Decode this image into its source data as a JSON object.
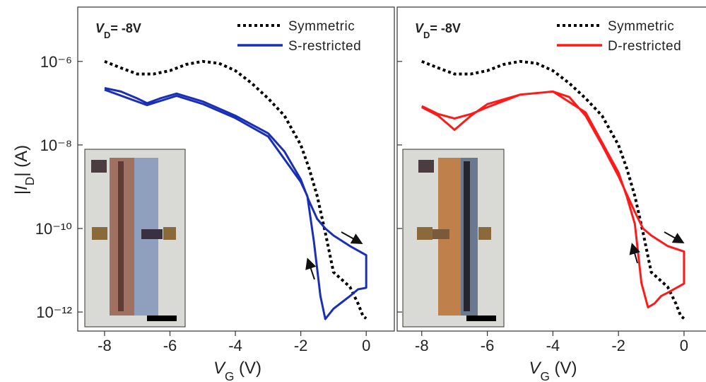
{
  "chart_data": [
    {
      "type": "line",
      "log_y": true,
      "legend": "upper right",
      "annotation": {
        "text": "V",
        "sub": "D",
        "rest": "= -8V"
      },
      "xlabel": {
        "text": "V",
        "sub": "G",
        "rest": " (V)"
      },
      "ylabel": {
        "pre": "|",
        "text": "I",
        "sub": "D",
        "rest": "| (A)"
      },
      "xlim": [
        -8.82,
        0.86
      ],
      "xticks": [
        -8,
        -6,
        -4,
        -2,
        0
      ],
      "ylim": [
        3.5e-13,
        2e-05
      ],
      "yticks": [
        {
          "value": 1e-06,
          "label": "10⁻⁶"
        },
        {
          "value": 1e-08,
          "label": "10⁻⁸"
        },
        {
          "value": 1e-10,
          "label": "10⁻¹⁰"
        },
        {
          "value": 1e-12,
          "label": "10⁻¹²"
        }
      ],
      "series": [
        {
          "name": "Symmetric",
          "color": "#000000",
          "style": "dotted",
          "x": [
            -8,
            -7.5,
            -7,
            -6.5,
            -6,
            -5.5,
            -5,
            -4.5,
            -4,
            -3.5,
            -3,
            -2.5,
            -2,
            -1.75,
            -1.5,
            -1.25,
            -1,
            -0.75,
            -0.5,
            -0.25,
            -0.1,
            0
          ],
          "values": [
            1e-06,
            7e-07,
            5e-07,
            5e-07,
            6e-07,
            8.5e-07,
            1e-06,
            9e-07,
            6e-07,
            3e-07,
            1.3e-07,
            5e-08,
            1e-08,
            2.8e-09,
            6e-10,
            8e-11,
            9e-12,
            6e-12,
            4e-12,
            1.6e-12,
            8e-13,
            7e-13
          ]
        },
        {
          "name": "S-restricted",
          "color": "#1a2fb8",
          "style": "solid",
          "x": [
            -8,
            -7.5,
            -7,
            -6.7,
            -6.3,
            -5.8,
            -5,
            -4,
            -3,
            -2.5,
            -2,
            -1.75,
            -1.5,
            -1.25,
            -1,
            -0.5,
            0,
            0,
            -0.25,
            -0.5,
            -0.75,
            -1,
            -1.25,
            -1.4,
            -1.6,
            -1.8,
            -2,
            -3,
            -4,
            -5,
            -5.8,
            -6.7,
            -8
          ],
          "values": [
            2.3e-07,
            1.9e-07,
            1.3e-07,
            1e-07,
            1.3e-07,
            1.7e-07,
            1.1e-07,
            5e-08,
            1.9e-08,
            7e-09,
            1.5e-09,
            4.6e-10,
            1.7e-10,
            1e-10,
            6.8e-11,
            3.8e-11,
            2.3e-11,
            3.8e-12,
            3.5e-12,
            2.4e-12,
            1.7e-12,
            1.2e-12,
            6.8e-13,
            2.4e-12,
            5e-11,
            6e-10,
            1.3e-09,
            1.6e-08,
            4.4e-08,
            9.6e-08,
            1.5e-07,
            9e-08,
            2.1e-07
          ]
        }
      ]
    },
    {
      "type": "line",
      "log_y": true,
      "legend": "upper right",
      "annotation": {
        "text": "V",
        "sub": "D",
        "rest": "= -8V"
      },
      "xlabel": {
        "text": "V",
        "sub": "G",
        "rest": " (V)"
      },
      "xlim": [
        -8.75,
        0.67
      ],
      "xticks": [
        -8,
        -6,
        -4,
        -2,
        0
      ],
      "ylim": [
        3.5e-13,
        2e-05
      ],
      "series": [
        {
          "name": "Symmetric",
          "color": "#000000",
          "style": "dotted",
          "x": [
            -8,
            -7.5,
            -7,
            -6.5,
            -6,
            -5.5,
            -5,
            -4.5,
            -4,
            -3.5,
            -3,
            -2.5,
            -2,
            -1.75,
            -1.5,
            -1.25,
            -1,
            -0.75,
            -0.5,
            -0.25,
            -0.1,
            0
          ],
          "values": [
            1e-06,
            7e-07,
            5e-07,
            5e-07,
            6e-07,
            8.5e-07,
            1e-06,
            9e-07,
            6e-07,
            3e-07,
            1.3e-07,
            5e-08,
            1e-08,
            2.8e-09,
            6e-10,
            8e-11,
            9e-12,
            6e-12,
            4e-12,
            1.6e-12,
            8e-13,
            7e-13
          ]
        },
        {
          "name": "D-restricted",
          "color": "#ff1a1a",
          "style": "solid",
          "x": [
            -8,
            -7.5,
            -7,
            -6.5,
            -6,
            -5,
            -4,
            -3.5,
            -3,
            -2.5,
            -2,
            -1.5,
            -1.25,
            -1,
            -0.5,
            0,
            0,
            -0.5,
            -0.7,
            -0.9,
            -1.1,
            -1.3,
            -1.5,
            -1.75,
            -2,
            -3,
            -4,
            -5,
            -6,
            -6.5,
            -7,
            -7.5,
            -8
          ],
          "values": [
            8e-08,
            5e-08,
            2.3e-08,
            5e-08,
            9.5e-08,
            1.6e-07,
            1.9e-07,
            1.4e-07,
            5e-08,
            1e-08,
            1.8e-09,
            2.5e-10,
            1e-10,
            6.8e-11,
            3.8e-11,
            2.8e-11,
            4.8e-12,
            2.9e-12,
            2.4e-12,
            1.6e-12,
            1.3e-12,
            5e-12,
            1.3e-10,
            6e-10,
            2.2e-09,
            6e-08,
            1.9e-07,
            1.6e-07,
            8e-08,
            5.5e-08,
            4.3e-08,
            5.5e-08,
            8.5e-08
          ]
        }
      ]
    }
  ]
}
